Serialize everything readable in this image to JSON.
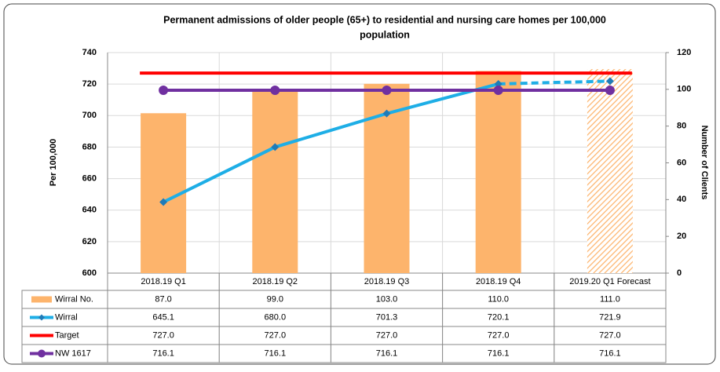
{
  "chart_data": {
    "type": "bar-line",
    "title": "Permanent admissions of older people (65+) to residential and nursing care homes per 100,000",
    "title_line2": "population",
    "ylabel": "Per 100,000",
    "y2label": "Number of Clients",
    "categories": [
      "2018.19 Q1",
      "2018.19 Q2",
      "2018.19 Q3",
      "2018.19 Q4",
      "2019.20 Q1 Forecast"
    ],
    "ylim": [
      600,
      740
    ],
    "yticks": [
      600,
      620,
      640,
      660,
      680,
      700,
      720,
      740
    ],
    "y2lim": [
      0,
      120
    ],
    "y2ticks": [
      0,
      20,
      40,
      60,
      80,
      100,
      120
    ],
    "grid": true,
    "series": [
      {
        "name": "Wirral No.",
        "kind": "bar",
        "axis": "y2",
        "color": "#fdb46c",
        "values": [
          87,
          99,
          103,
          110,
          111
        ],
        "value_labels": [
          "87.0",
          "99.0",
          "103.0",
          "110.0",
          "111.0"
        ]
      },
      {
        "name": "Wirral",
        "kind": "line",
        "marker": "diamond",
        "color": "#1eaee6",
        "values": [
          645.1,
          680,
          701.3,
          720.1,
          721.9
        ],
        "value_labels": [
          "645.1",
          "680.0",
          "701.3",
          "720.1",
          "721.9"
        ]
      },
      {
        "name": "Target",
        "kind": "line",
        "marker": "none",
        "color": "#ff0000",
        "values": [
          727,
          727,
          727,
          727,
          727
        ],
        "value_labels": [
          "727.0",
          "727.0",
          "727.0",
          "727.0",
          "727.0"
        ]
      },
      {
        "name": "NW 1617",
        "kind": "line",
        "marker": "circle",
        "color": "#7030a0",
        "values": [
          716.1,
          716.1,
          716.1,
          716.1,
          716.1
        ],
        "value_labels": [
          "716.1",
          "716.1",
          "716.1",
          "716.1",
          "716.1"
        ]
      }
    ]
  }
}
